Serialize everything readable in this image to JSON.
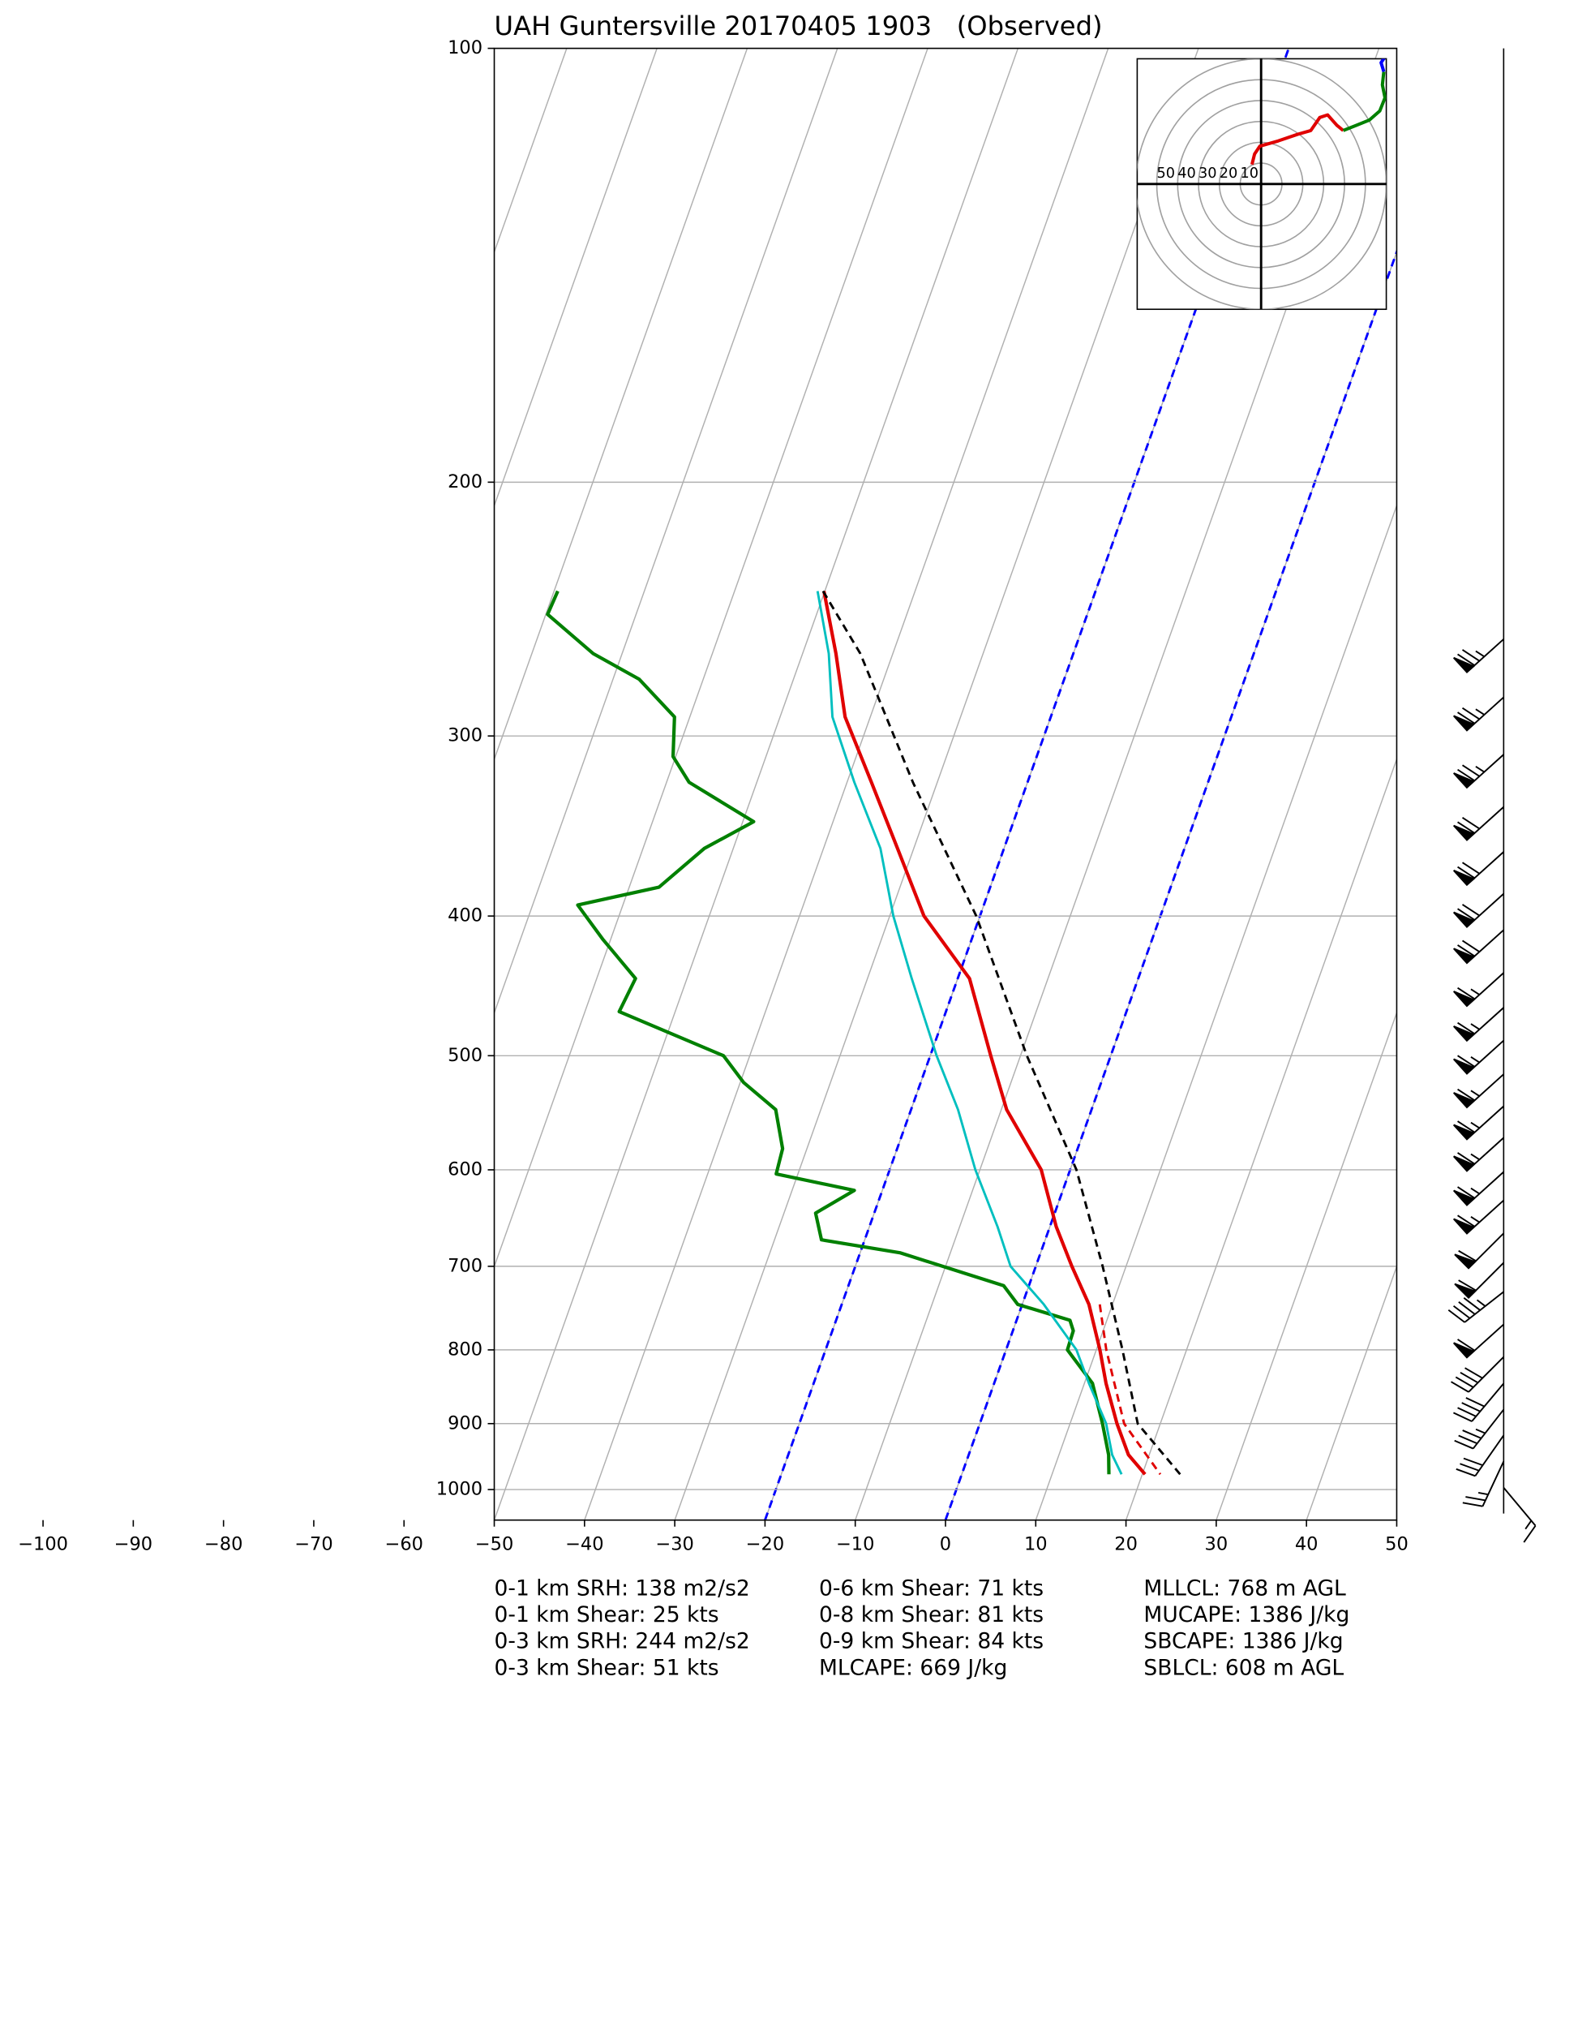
{
  "chart_data": {
    "type": "skewt",
    "title": "UAH Guntersville 20170405 1903   (Observed)",
    "xlim": [
      -50,
      50
    ],
    "ylim": [
      1050,
      100
    ],
    "log_y": true,
    "grid": true,
    "xticks": [
      {
        "value": -100,
        "label": "−100"
      },
      {
        "value": -90,
        "label": "−90"
      },
      {
        "value": -80,
        "label": "−80"
      },
      {
        "value": -70,
        "label": "−70"
      },
      {
        "value": -60,
        "label": "−60"
      },
      {
        "value": -50,
        "label": "−50"
      },
      {
        "value": -40,
        "label": "−40"
      },
      {
        "value": -30,
        "label": "−30"
      },
      {
        "value": -20,
        "label": "−20"
      },
      {
        "value": -10,
        "label": "−10"
      },
      0,
      10,
      20,
      30,
      40,
      50
    ],
    "yticks": [
      100,
      200,
      300,
      400,
      500,
      600,
      700,
      800,
      900,
      1000
    ],
    "highlight_isotherms": {
      "values": [
        -20,
        0
      ],
      "color": "#0000ff"
    },
    "series": [
      {
        "color": "#008000",
        "width": 2.6,
        "dashed": false,
        "pressure": [
          238,
          247,
          263,
          274,
          291,
          310,
          323,
          344,
          359,
          382,
          393,
          415,
          442,
          466,
          500,
          522,
          545,
          580,
          604,
          620,
          643,
          671,
          685,
          722,
          744,
          763,
          776,
          800,
          844,
          900,
          946,
          976
        ],
        "values": [
          -79.6,
          -79.8,
          -73.2,
          -67.1,
          -61.7,
          -60.3,
          -57.5,
          -48.8,
          -53.2,
          -56.7,
          -65,
          -60.9,
          -55.7,
          -56.2,
          -42.9,
          -39.6,
          -35.0,
          -32.7,
          -32.4,
          -23.1,
          -26.5,
          -24.8,
          -15.6,
          -2.8,
          -0.5,
          5.9,
          6.7,
          6.8,
          10.9,
          13.6,
          15.5,
          16.3
        ]
      },
      {
        "color": "#00bfbf",
        "width": 1.8,
        "dashed": false,
        "pressure": [
          238,
          263,
          291,
          323,
          359,
          400,
          442,
          500,
          545,
          600,
          657,
          700,
          744,
          800,
          844,
          900,
          946,
          976
        ],
        "values": [
          -50.8,
          -47.1,
          -44.2,
          -39.2,
          -33.7,
          -29.6,
          -25.1,
          -19.3,
          -14.8,
          -10.5,
          -5.8,
          -2.8,
          2.4,
          7.8,
          10.5,
          14.0,
          15.9,
          17.7
        ]
      },
      {
        "color": "#e00000",
        "width": 2.6,
        "dashed": false,
        "pressure": [
          238,
          263,
          291,
          323,
          359,
          400,
          442,
          500,
          545,
          600,
          657,
          700,
          744,
          800,
          844,
          900,
          946,
          976
        ],
        "values": [
          -50.1,
          -46.3,
          -42.8,
          -37.3,
          -31.8,
          -26.2,
          -18.7,
          -13.3,
          -9.4,
          -3.2,
          0.7,
          4.0,
          7.4,
          10.4,
          12.4,
          15.2,
          17.7,
          20.3
        ]
      },
      {
        "color": "#e00000",
        "width": 1.8,
        "dashed": true,
        "pressure": [
          744,
          800,
          900,
          976
        ],
        "values": [
          8.6,
          11.1,
          16.0,
          22.0
        ]
      },
      {
        "color": "#000000",
        "width": 1.8,
        "dashed": true,
        "pressure": [
          238,
          263,
          323,
          400,
          500,
          600,
          700,
          800,
          900,
          976
        ],
        "values": [
          -50.2,
          -43.6,
          -32.7,
          -20.4,
          -9.3,
          0.7,
          7.4,
          12.9,
          17.5,
          24.2
        ]
      }
    ],
    "wind_barbs": {
      "pressure": [
        257,
        282,
        309,
        336,
        361,
        386,
        409,
        438,
        463,
        488,
        515,
        542,
        570,
        602,
        630,
        664,
        696,
        729,
        768,
        809,
        844,
        880,
        917,
        956,
        997
      ],
      "speed": [
        75,
        75,
        75,
        70,
        70,
        70,
        70,
        65,
        65,
        65,
        65,
        65,
        65,
        65,
        65,
        60,
        60,
        45,
        60,
        40,
        40,
        35,
        30,
        25,
        15
      ],
      "direction": [
        228,
        228,
        228,
        228,
        228,
        228,
        228,
        228,
        228,
        228,
        228,
        228,
        228,
        228,
        228,
        225,
        225,
        232,
        228,
        225,
        220,
        218,
        215,
        205,
        140
      ]
    },
    "hodograph": {
      "rings": [
        10,
        20,
        30,
        40,
        50,
        60
      ],
      "segments": [
        {
          "color": "#e00000",
          "u": [
            -4.4,
            -3.1,
            -0.6,
            8.1,
            17.5,
            23.8,
            28.1,
            31.9,
            36.3,
            39.4
          ],
          "v": [
            9.4,
            14.4,
            18.1,
            20.6,
            23.8,
            25.6,
            31.9,
            33.1,
            28.1,
            25.6
          ]
        },
        {
          "color": "#008000",
          "u": [
            39.4,
            45.6,
            51.9,
            56.9,
            59.4,
            58.1,
            58.8
          ],
          "v": [
            25.6,
            28.1,
            30.6,
            35,
            41.3,
            47.5,
            53.8
          ]
        },
        {
          "color": "#0000ff",
          "u": [
            58.8,
            57.5,
            60,
            58.1
          ],
          "v": [
            53.8,
            58.1,
            61.9,
            65
          ]
        }
      ]
    },
    "stats": [
      [
        "0-1 km SRH: 138 m2/s2",
        "0-1 km Shear: 25 kts",
        "0-3 km SRH: 244 m2/s2",
        "0-3 km Shear: 51 kts"
      ],
      [
        "0-6 km Shear: 71 kts",
        "0-8 km Shear: 81 kts",
        "0-9 km Shear: 84 kts",
        "MLCAPE: 669 J/kg"
      ],
      [
        "MLLCL: 768 m AGL",
        "MUCAPE: 1386 J/kg",
        "SBCAPE: 1386 J/kg",
        "SBLCL: 608 m AGL"
      ]
    ]
  }
}
